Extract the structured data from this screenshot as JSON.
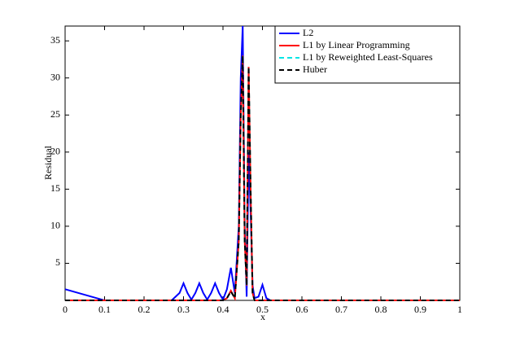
{
  "chart_data": {
    "type": "line",
    "xlabel": "x",
    "ylabel": "Residual",
    "x": [
      0,
      0.1,
      0.2,
      0.27,
      0.29,
      0.3,
      0.31,
      0.32,
      0.33,
      0.34,
      0.35,
      0.36,
      0.37,
      0.38,
      0.39,
      0.4,
      0.41,
      0.42,
      0.43,
      0.44,
      0.445,
      0.45,
      0.455,
      0.46,
      0.465,
      0.47,
      0.475,
      0.48,
      0.49,
      0.5,
      0.51,
      0.52,
      0.6,
      0.7,
      0.8,
      0.9,
      1
    ],
    "series": [
      {
        "name": "L2",
        "color": "#0000ff",
        "linestyle": "-",
        "values": [
          1.5,
          0,
          0,
          0,
          1.0,
          2.3,
          1.0,
          0.1,
          1.0,
          2.3,
          1.0,
          0.1,
          1.0,
          2.3,
          1.0,
          0.1,
          1.5,
          4.4,
          1.0,
          10,
          30,
          37,
          10,
          0.5,
          20,
          12,
          2,
          0.3,
          0.5,
          2.1,
          0.3,
          0,
          0,
          0,
          0,
          0,
          0
        ]
      },
      {
        "name": "L1 by Linear Programming",
        "color": "#ff0000",
        "linestyle": "-",
        "values": [
          0,
          0,
          0,
          0,
          0,
          0,
          0,
          0,
          0,
          0,
          0,
          0,
          0,
          0,
          0,
          0,
          0.3,
          1.3,
          0.3,
          8,
          25,
          33,
          8,
          2,
          31.5,
          15,
          1,
          0,
          0,
          0,
          0,
          0,
          0,
          0,
          0,
          0,
          0
        ]
      },
      {
        "name": "L1 by Reweighted Least-Squares",
        "color": "#00e5e5",
        "linestyle": "--",
        "values": [
          0,
          0,
          0,
          0,
          0,
          0,
          0,
          0,
          0,
          0,
          0,
          0,
          0,
          0,
          0,
          0,
          0.3,
          1.2,
          0.3,
          8,
          25,
          33,
          8,
          2,
          31.5,
          15,
          1,
          0,
          0,
          0,
          0,
          0,
          0,
          0,
          0,
          0,
          0
        ]
      },
      {
        "name": "Huber",
        "color": "#000000",
        "linestyle": "--",
        "values": [
          0,
          0,
          0,
          0,
          0,
          0,
          0,
          0,
          0,
          0,
          0,
          0,
          0,
          0,
          0,
          0,
          0.3,
          1.2,
          0.3,
          8,
          25,
          33,
          8,
          2,
          31.5,
          15,
          1,
          0,
          0,
          0,
          0,
          0,
          0,
          0,
          0,
          0,
          0
        ]
      }
    ],
    "xlim": [
      0,
      1
    ],
    "xticks": [
      0,
      0.1,
      0.2,
      0.3,
      0.4,
      0.5,
      0.6,
      0.7,
      0.8,
      0.9,
      1
    ],
    "ylim": [
      0,
      37
    ],
    "yticks": [
      5,
      10,
      15,
      20,
      25,
      30,
      35
    ],
    "grid": false,
    "legend": "upper right"
  }
}
